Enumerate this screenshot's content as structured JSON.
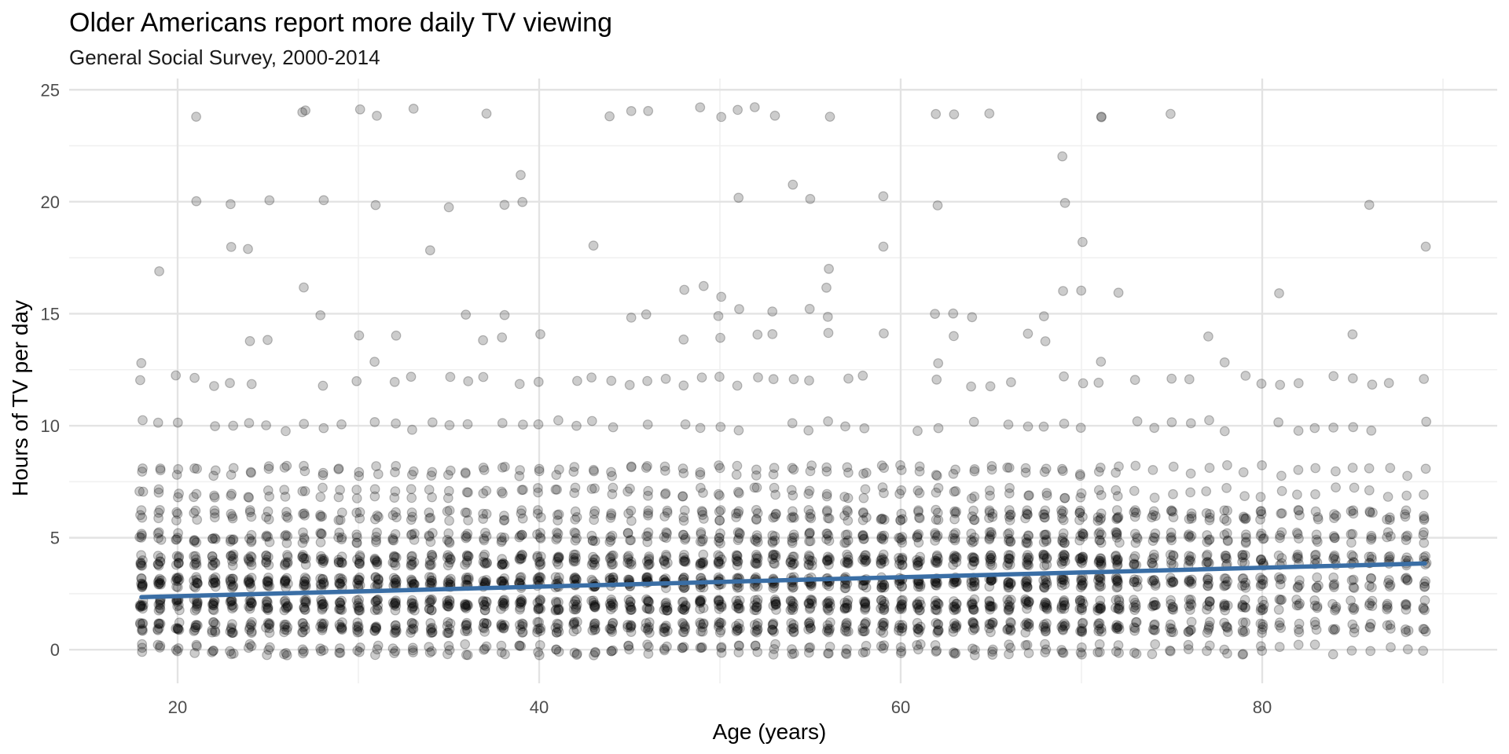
{
  "chart_data": {
    "type": "scatter",
    "title": "Older Americans report more daily TV viewing",
    "subtitle": "General Social Survey, 2000-2014",
    "xlabel": "Age (years)",
    "ylabel": "Hours of TV per day",
    "xlim": [
      14,
      93
    ],
    "ylim": [
      -1.5,
      25.5
    ],
    "x_ticks": [
      20,
      40,
      60,
      80
    ],
    "y_ticks": [
      0,
      5,
      10,
      15,
      20,
      25
    ],
    "grid": true,
    "point_alpha": 0.2,
    "ages": {
      "start": 18,
      "end": 89,
      "step": 1
    },
    "hours_levels": [
      0,
      1,
      2,
      3,
      4,
      5,
      6,
      7,
      8,
      10,
      12
    ],
    "outlier_points": [
      {
        "x": 18,
        "y": 13
      },
      {
        "x": 19,
        "y": 17
      },
      {
        "x": 21,
        "y": 24
      },
      {
        "x": 21,
        "y": 20
      },
      {
        "x": 23,
        "y": 18
      },
      {
        "x": 23,
        "y": 20
      },
      {
        "x": 24,
        "y": 18
      },
      {
        "x": 24,
        "y": 14
      },
      {
        "x": 25,
        "y": 14
      },
      {
        "x": 25,
        "y": 20
      },
      {
        "x": 27,
        "y": 24
      },
      {
        "x": 27,
        "y": 24
      },
      {
        "x": 27,
        "y": 16
      },
      {
        "x": 28,
        "y": 15
      },
      {
        "x": 28,
        "y": 20
      },
      {
        "x": 30,
        "y": 24
      },
      {
        "x": 30,
        "y": 14
      },
      {
        "x": 31,
        "y": 24
      },
      {
        "x": 31,
        "y": 20
      },
      {
        "x": 31,
        "y": 13
      },
      {
        "x": 32,
        "y": 14
      },
      {
        "x": 33,
        "y": 24
      },
      {
        "x": 34,
        "y": 18
      },
      {
        "x": 35,
        "y": 20
      },
      {
        "x": 36,
        "y": 15
      },
      {
        "x": 37,
        "y": 24
      },
      {
        "x": 37,
        "y": 14
      },
      {
        "x": 38,
        "y": 20
      },
      {
        "x": 38,
        "y": 15
      },
      {
        "x": 38,
        "y": 14
      },
      {
        "x": 39,
        "y": 21
      },
      {
        "x": 39,
        "y": 20
      },
      {
        "x": 40,
        "y": 14
      },
      {
        "x": 43,
        "y": 18
      },
      {
        "x": 44,
        "y": 24
      },
      {
        "x": 45,
        "y": 24
      },
      {
        "x": 45,
        "y": 15
      },
      {
        "x": 46,
        "y": 24
      },
      {
        "x": 46,
        "y": 15
      },
      {
        "x": 48,
        "y": 16
      },
      {
        "x": 48,
        "y": 14
      },
      {
        "x": 49,
        "y": 24
      },
      {
        "x": 49,
        "y": 16
      },
      {
        "x": 50,
        "y": 24
      },
      {
        "x": 50,
        "y": 16
      },
      {
        "x": 50,
        "y": 15
      },
      {
        "x": 50,
        "y": 14
      },
      {
        "x": 51,
        "y": 24
      },
      {
        "x": 51,
        "y": 20
      },
      {
        "x": 51,
        "y": 15
      },
      {
        "x": 52,
        "y": 24
      },
      {
        "x": 52,
        "y": 14
      },
      {
        "x": 53,
        "y": 24
      },
      {
        "x": 53,
        "y": 15
      },
      {
        "x": 53,
        "y": 14
      },
      {
        "x": 54,
        "y": 21
      },
      {
        "x": 55,
        "y": 20
      },
      {
        "x": 55,
        "y": 15
      },
      {
        "x": 56,
        "y": 24
      },
      {
        "x": 56,
        "y": 17
      },
      {
        "x": 56,
        "y": 16
      },
      {
        "x": 56,
        "y": 15
      },
      {
        "x": 56,
        "y": 14
      },
      {
        "x": 59,
        "y": 20
      },
      {
        "x": 59,
        "y": 18
      },
      {
        "x": 59,
        "y": 14
      },
      {
        "x": 62,
        "y": 24
      },
      {
        "x": 62,
        "y": 20
      },
      {
        "x": 62,
        "y": 15
      },
      {
        "x": 62,
        "y": 13
      },
      {
        "x": 63,
        "y": 24
      },
      {
        "x": 63,
        "y": 15
      },
      {
        "x": 63,
        "y": 14
      },
      {
        "x": 64,
        "y": 15
      },
      {
        "x": 65,
        "y": 24
      },
      {
        "x": 67,
        "y": 14
      },
      {
        "x": 68,
        "y": 15
      },
      {
        "x": 68,
        "y": 14
      },
      {
        "x": 69,
        "y": 22
      },
      {
        "x": 69,
        "y": 20
      },
      {
        "x": 69,
        "y": 16
      },
      {
        "x": 70,
        "y": 18
      },
      {
        "x": 70,
        "y": 16
      },
      {
        "x": 71,
        "y": 24
      },
      {
        "x": 71,
        "y": 24
      },
      {
        "x": 71,
        "y": 13
      },
      {
        "x": 72,
        "y": 16
      },
      {
        "x": 75,
        "y": 24
      },
      {
        "x": 77,
        "y": 14
      },
      {
        "x": 78,
        "y": 13
      },
      {
        "x": 81,
        "y": 16
      },
      {
        "x": 85,
        "y": 14
      },
      {
        "x": 86,
        "y": 20
      },
      {
        "x": 89,
        "y": 18
      }
    ],
    "trend_line": {
      "x": [
        18,
        89
      ],
      "y": [
        2.35,
        3.85
      ]
    }
  }
}
